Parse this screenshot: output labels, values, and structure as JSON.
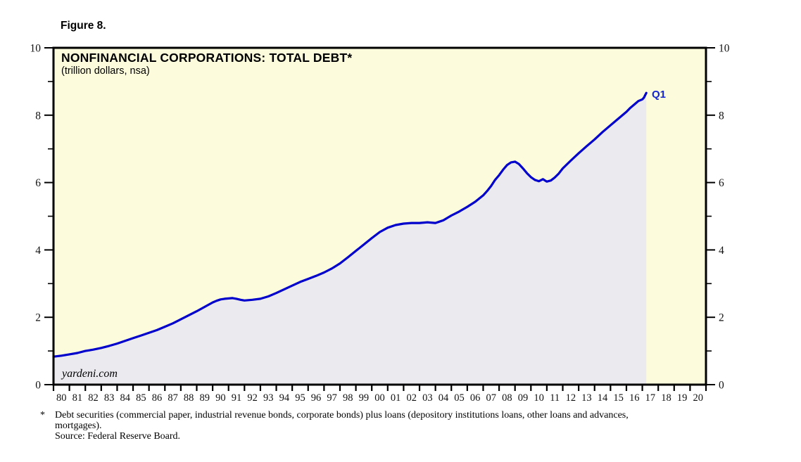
{
  "figure_label": "Figure 8.",
  "chart": {
    "title": "NONFINANCIAL CORPORATIONS: TOTAL DEBT*",
    "subtitle": "(trillion dollars, nsa)",
    "watermark": "yardeni.com",
    "end_point_label": "Q1"
  },
  "footnote": {
    "marker": "*",
    "line1": "Debt securities (commercial paper, industrial revenue bonds, corporate bonds) plus loans (depository institutions loans, other loans and advances,",
    "line2": "mortgages).",
    "line3": "Source: Federal Reserve Board."
  },
  "chart_data": {
    "type": "area",
    "title": "NONFINANCIAL CORPORATIONS: TOTAL DEBT*",
    "subtitle": "(trillion dollars, nsa)",
    "ylabel": "trillion dollars",
    "xlim": [
      1980,
      2021
    ],
    "ylim": [
      0,
      10
    ],
    "y_major_ticks": [
      0,
      2,
      4,
      6,
      8,
      10
    ],
    "y_minor_ticks": [
      1,
      3,
      5,
      7,
      9
    ],
    "x_tick_labels": [
      "80",
      "81",
      "82",
      "83",
      "84",
      "85",
      "86",
      "87",
      "88",
      "89",
      "90",
      "91",
      "92",
      "93",
      "94",
      "95",
      "96",
      "97",
      "98",
      "99",
      "00",
      "01",
      "02",
      "03",
      "04",
      "05",
      "06",
      "07",
      "08",
      "09",
      "10",
      "11",
      "12",
      "13",
      "14",
      "15",
      "16",
      "17",
      "18",
      "19",
      "20"
    ],
    "last_point_label": "Q1",
    "grid": false,
    "legend": null,
    "colors": {
      "line": "#0000CD",
      "area_fill": "#EAEAEF",
      "plot_background": "#FCFCDC",
      "border": "#000000",
      "tick_label": "#111111",
      "annotation": "#1424D2"
    },
    "x": [
      1980,
      1980.5,
      1981,
      1981.5,
      1982,
      1982.5,
      1983,
      1983.5,
      1984,
      1984.5,
      1985,
      1985.5,
      1986,
      1986.5,
      1987,
      1987.5,
      1988,
      1988.5,
      1989,
      1989.5,
      1990,
      1990.25,
      1990.5,
      1990.75,
      1991,
      1991.25,
      1991.5,
      1991.75,
      1992,
      1992.25,
      1992.5,
      1993,
      1993.5,
      1994,
      1994.5,
      1995,
      1995.5,
      1996,
      1996.5,
      1997,
      1997.5,
      1998,
      1998.5,
      1999,
      1999.5,
      2000,
      2000.5,
      2001,
      2001.5,
      2002,
      2002.5,
      2003,
      2003.5,
      2004,
      2004.25,
      2004.5,
      2005,
      2005.5,
      2006,
      2006.5,
      2007,
      2007.25,
      2007.5,
      2007.75,
      2008,
      2008.25,
      2008.5,
      2008.75,
      2009,
      2009.25,
      2009.5,
      2009.75,
      2010,
      2010.25,
      2010.5,
      2010.75,
      2011,
      2011.25,
      2011.5,
      2011.75,
      2012,
      2012.5,
      2013,
      2013.5,
      2014,
      2014.5,
      2015,
      2015.5,
      2016,
      2016.25,
      2016.5,
      2016.75,
      2017,
      2017.1,
      2017.25
    ],
    "values": [
      0.83,
      0.86,
      0.9,
      0.94,
      1.0,
      1.04,
      1.09,
      1.15,
      1.22,
      1.3,
      1.38,
      1.46,
      1.54,
      1.62,
      1.72,
      1.82,
      1.94,
      2.06,
      2.18,
      2.31,
      2.44,
      2.49,
      2.53,
      2.55,
      2.56,
      2.57,
      2.55,
      2.52,
      2.5,
      2.51,
      2.52,
      2.55,
      2.62,
      2.72,
      2.83,
      2.94,
      3.05,
      3.14,
      3.23,
      3.33,
      3.45,
      3.6,
      3.78,
      3.97,
      4.16,
      4.35,
      4.53,
      4.66,
      4.74,
      4.78,
      4.8,
      4.8,
      4.82,
      4.8,
      4.84,
      4.88,
      5.02,
      5.14,
      5.28,
      5.43,
      5.62,
      5.75,
      5.9,
      6.08,
      6.22,
      6.38,
      6.52,
      6.6,
      6.62,
      6.55,
      6.42,
      6.28,
      6.16,
      6.08,
      6.04,
      6.1,
      6.03,
      6.06,
      6.15,
      6.27,
      6.42,
      6.65,
      6.87,
      7.08,
      7.28,
      7.5,
      7.7,
      7.9,
      8.1,
      8.22,
      8.32,
      8.42,
      8.47,
      8.52,
      8.66
    ]
  }
}
